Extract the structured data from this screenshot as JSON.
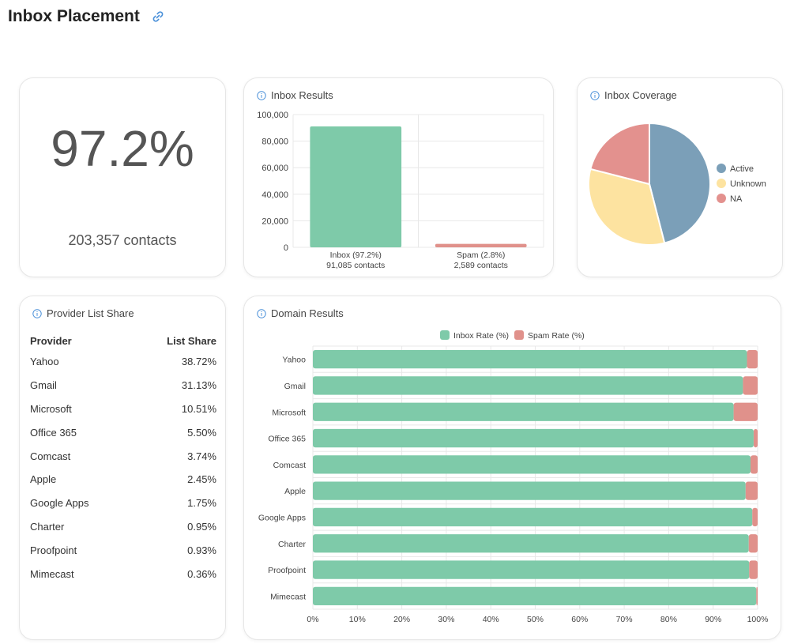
{
  "page": {
    "title": "Inbox Placement"
  },
  "summary": {
    "percent": "97.2%",
    "contacts": "203,357 contacts"
  },
  "inbox_results": {
    "title": "Inbox Results"
  },
  "inbox_coverage": {
    "title": "Inbox Coverage"
  },
  "provider_share": {
    "title": "Provider List Share",
    "headers": {
      "provider": "Provider",
      "share": "List Share"
    },
    "rows": [
      {
        "provider": "Yahoo",
        "share": "38.72%"
      },
      {
        "provider": "Gmail",
        "share": "31.13%"
      },
      {
        "provider": "Microsoft",
        "share": "10.51%"
      },
      {
        "provider": "Office 365",
        "share": "5.50%"
      },
      {
        "provider": "Comcast",
        "share": "3.74%"
      },
      {
        "provider": "Apple",
        "share": "2.45%"
      },
      {
        "provider": "Google Apps",
        "share": "1.75%"
      },
      {
        "provider": "Charter",
        "share": "0.95%"
      },
      {
        "provider": "Proofpoint",
        "share": "0.93%"
      },
      {
        "provider": "Mimecast",
        "share": "0.36%"
      }
    ]
  },
  "domain_results": {
    "title": "Domain Results"
  },
  "colors": {
    "inbox": "#7ecaa9",
    "spam": "#e0918b",
    "active": "#7b9fb8",
    "unknown": "#fde3a0",
    "na": "#e3918e",
    "grid": "#e8e8e8"
  },
  "chart_data": [
    {
      "id": "inbox-results",
      "type": "bar",
      "categories": [
        "Inbox (97.2%)",
        "Spam (2.8%)"
      ],
      "sublabels": [
        "91,085 contacts",
        "2,589 contacts"
      ],
      "values": [
        91085,
        2589
      ],
      "ylim": [
        0,
        100000
      ],
      "yticks": [
        "0",
        "20,000",
        "40,000",
        "60,000",
        "80,000",
        "100,000"
      ],
      "ytick_values": [
        0,
        20000,
        40000,
        60000,
        80000,
        100000
      ],
      "grid": true
    },
    {
      "id": "inbox-coverage",
      "type": "pie",
      "labels": [
        "Active",
        "Unknown",
        "NA"
      ],
      "values": [
        46,
        33,
        21
      ],
      "legend": "right"
    },
    {
      "id": "domain-results",
      "type": "bar",
      "orientation": "horizontal",
      "stacked": true,
      "categories": [
        "Yahoo",
        "Gmail",
        "Microsoft",
        "Office 365",
        "Comcast",
        "Apple",
        "Google Apps",
        "Charter",
        "Proofpoint",
        "Mimecast"
      ],
      "series": [
        {
          "name": "Inbox Rate (%)",
          "values": [
            97.6,
            96.7,
            94.6,
            99.1,
            98.4,
            97.3,
            98.8,
            98.0,
            98.1,
            99.7
          ]
        },
        {
          "name": "Spam Rate (%)",
          "values": [
            2.4,
            3.3,
            5.4,
            0.9,
            1.6,
            2.7,
            1.2,
            2.0,
            1.9,
            0.3
          ]
        }
      ],
      "xlim": [
        0,
        100
      ],
      "xticks": [
        "0%",
        "10%",
        "20%",
        "30%",
        "40%",
        "50%",
        "60%",
        "70%",
        "80%",
        "90%",
        "100%"
      ],
      "legend": "top",
      "grid": true
    }
  ]
}
